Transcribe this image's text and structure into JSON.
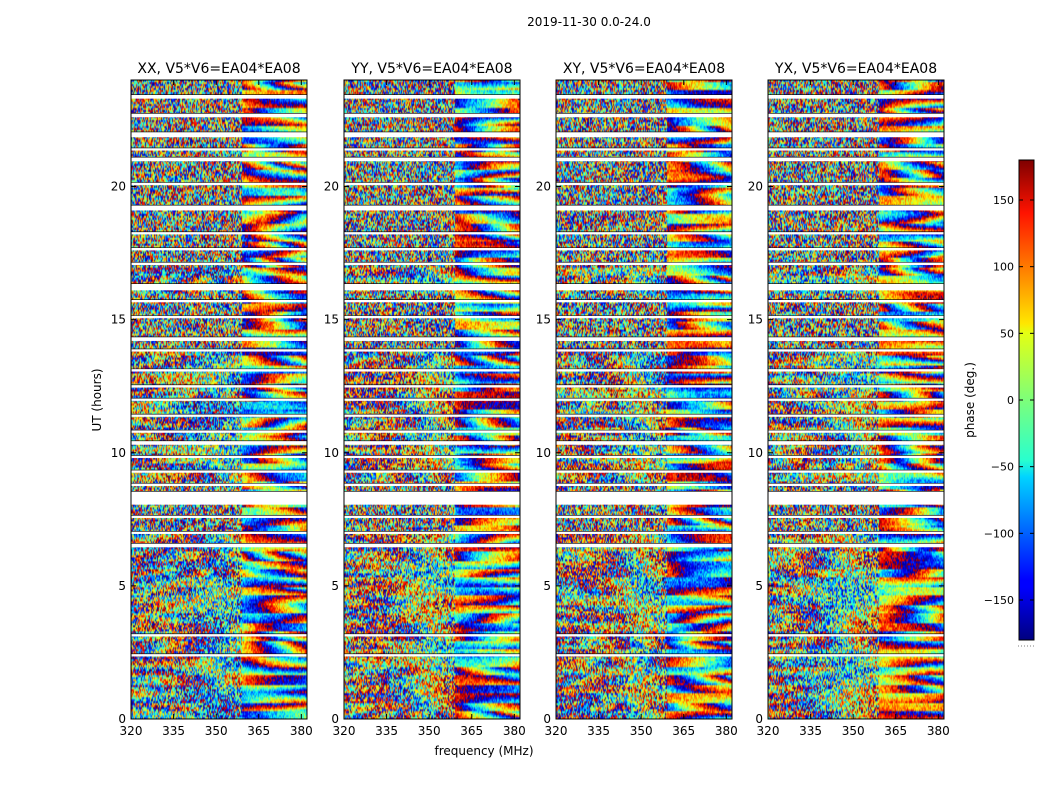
{
  "chart_data": {
    "type": "heatmap",
    "suptitle": "2019-11-30 0.0-24.0",
    "xlabel": "frequency (MHz)",
    "ylabel": "UT (hours)",
    "xlim": [
      320,
      382
    ],
    "ylim": [
      0,
      24
    ],
    "xticks": [
      320,
      335,
      350,
      365,
      380
    ],
    "yticks": [
      0,
      5,
      10,
      15,
      20
    ],
    "panels": [
      {
        "title": "XX, V5*V6=EA04*EA08",
        "base_phase": -60,
        "show_ylabel": true
      },
      {
        "title": "YY, V5*V6=EA04*EA08",
        "base_phase": 10,
        "show_ylabel": false
      },
      {
        "title": "XY, V5*V6=EA04*EA08",
        "base_phase": 0,
        "show_ylabel": false
      },
      {
        "title": "YX, V5*V6=EA04*EA08",
        "base_phase": 0,
        "show_ylabel": false
      }
    ],
    "flagged_time_ranges_hours": [
      [
        23.3,
        23.45
      ],
      [
        22.6,
        22.75
      ],
      [
        21.85,
        22.05
      ],
      [
        21.35,
        21.45
      ],
      [
        20.95,
        21.1
      ],
      [
        20.05,
        20.15
      ],
      [
        19.1,
        19.3
      ],
      [
        18.2,
        18.3
      ],
      [
        17.6,
        17.7
      ],
      [
        17.05,
        17.15
      ],
      [
        16.1,
        16.35
      ],
      [
        15.65,
        15.75
      ],
      [
        15.05,
        15.15
      ],
      [
        14.2,
        14.35
      ],
      [
        13.8,
        13.9
      ],
      [
        13.05,
        13.15
      ],
      [
        12.45,
        12.55
      ],
      [
        11.95,
        12.05
      ],
      [
        11.35,
        11.45
      ],
      [
        10.75,
        10.85
      ],
      [
        10.3,
        10.45
      ],
      [
        9.8,
        9.9
      ],
      [
        9.25,
        9.35
      ],
      [
        8.75,
        8.85
      ],
      [
        8.05,
        8.55
      ],
      [
        7.55,
        7.65
      ],
      [
        6.95,
        7.05
      ],
      [
        6.45,
        6.6
      ],
      [
        3.1,
        3.2
      ],
      [
        2.35,
        2.45
      ]
    ],
    "colorbar": {
      "label": "phase (deg.)",
      "colormap": "jet",
      "vmin": -180,
      "vmax": 180,
      "ticks": [
        -150,
        -100,
        -50,
        0,
        50,
        100,
        150
      ]
    }
  }
}
